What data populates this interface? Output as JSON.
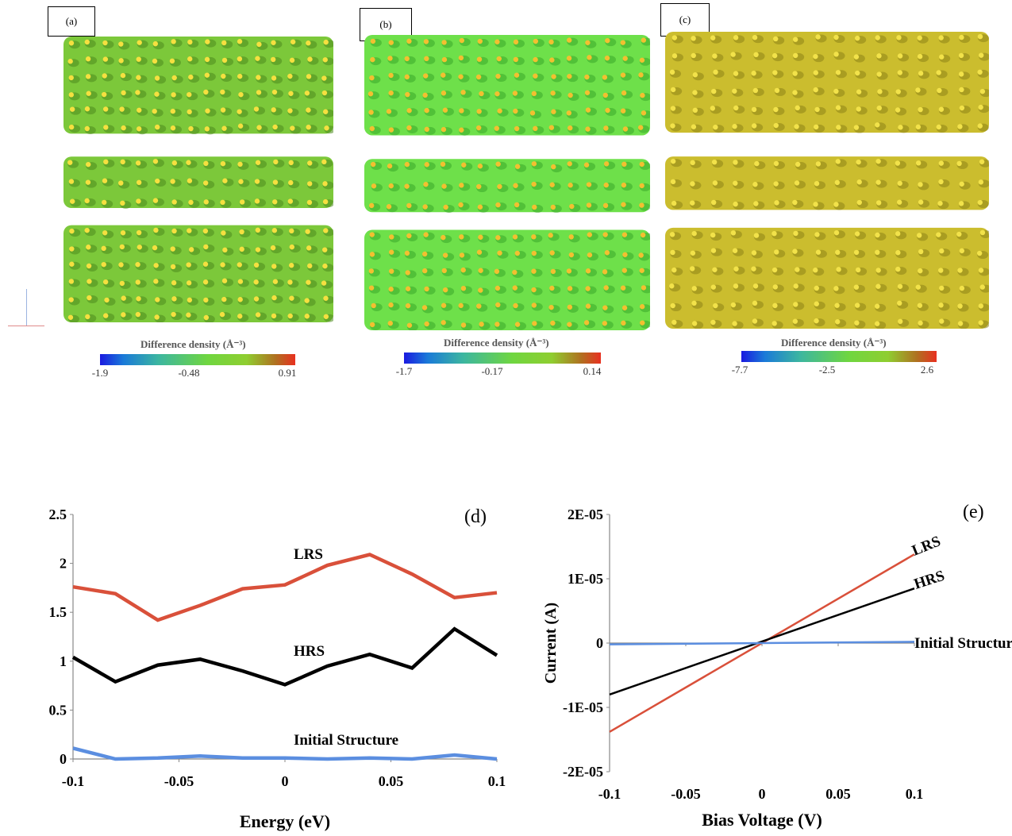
{
  "panels": [
    {
      "tag": "(a)",
      "colorbar_title": "Difference density (Å⁻³)",
      "ticks": [
        "-1.9",
        "-0.48",
        "0.91"
      ],
      "tint": "#7cc83a",
      "dark": "#4d8a1e",
      "atom": "#f5e040"
    },
    {
      "tag": "(b)",
      "colorbar_title": "Difference density (Å⁻³)",
      "ticks": [
        "-1.7",
        "-0.17",
        "0.14"
      ],
      "tint": "#6ee04a",
      "dark": "#3aa82a",
      "atom": "#f2c030"
    },
    {
      "tag": "(c)",
      "colorbar_title": "Difference density (Å⁻³)",
      "ticks": [
        "-7.7",
        "-2.5",
        "2.6"
      ],
      "tint": "#cbbd2e",
      "dark": "#8e8418",
      "atom": "#f2e24a"
    }
  ],
  "chart_data": [
    {
      "type": "line",
      "panel_label": "(d)",
      "xlabel": "Energy (eV)",
      "ylabel": "",
      "xlim": [
        -0.1,
        0.1
      ],
      "ylim": [
        0,
        2.5
      ],
      "x_ticks": [
        "-0.1",
        "-0.05",
        "0",
        "0.05",
        "0.1"
      ],
      "y_ticks": [
        "0",
        "0.5",
        "1",
        "1.5",
        "2",
        "2.5"
      ],
      "x": [
        -0.1,
        -0.08,
        -0.06,
        -0.04,
        -0.02,
        0,
        0.02,
        0.04,
        0.06,
        0.08,
        0.1
      ],
      "series": [
        {
          "name": "LRS",
          "color": "#d9503a",
          "values": [
            1.76,
            1.69,
            1.42,
            1.57,
            1.74,
            1.78,
            1.98,
            2.09,
            1.89,
            1.65,
            1.7
          ]
        },
        {
          "name": "HRS",
          "color": "#000000",
          "values": [
            1.04,
            0.79,
            0.96,
            1.02,
            0.9,
            0.76,
            0.95,
            1.07,
            0.93,
            1.33,
            1.06
          ]
        },
        {
          "name": "Initial Structure",
          "color": "#5b8ee0",
          "values": [
            0.11,
            0.0,
            0.01,
            0.03,
            0.01,
            0.01,
            0.0,
            0.01,
            0.0,
            0.04,
            0.0
          ]
        }
      ]
    },
    {
      "type": "line",
      "panel_label": "(e)",
      "xlabel": "Bias Voltage (V)",
      "ylabel": "Current (A)",
      "xlim": [
        -0.1,
        0.1
      ],
      "ylim": [
        -2e-05,
        2e-05
      ],
      "x_ticks": [
        "-0.1",
        "-0.05",
        "0",
        "0.05",
        "0.1"
      ],
      "y_ticks": [
        "-2E-05",
        "-1E-05",
        "0",
        "1E-05",
        "2E-05"
      ],
      "x": [
        -0.1,
        0.1
      ],
      "series": [
        {
          "name": "LRS",
          "color": "#d9503a",
          "values": [
            -1.38e-05,
            1.38e-05
          ]
        },
        {
          "name": "HRS",
          "color": "#000000",
          "values": [
            -8e-06,
            8.5e-06
          ]
        },
        {
          "name": "Initial Structure",
          "color": "#5b8ee0",
          "values": [
            -2e-07,
            2e-07
          ]
        }
      ]
    }
  ]
}
